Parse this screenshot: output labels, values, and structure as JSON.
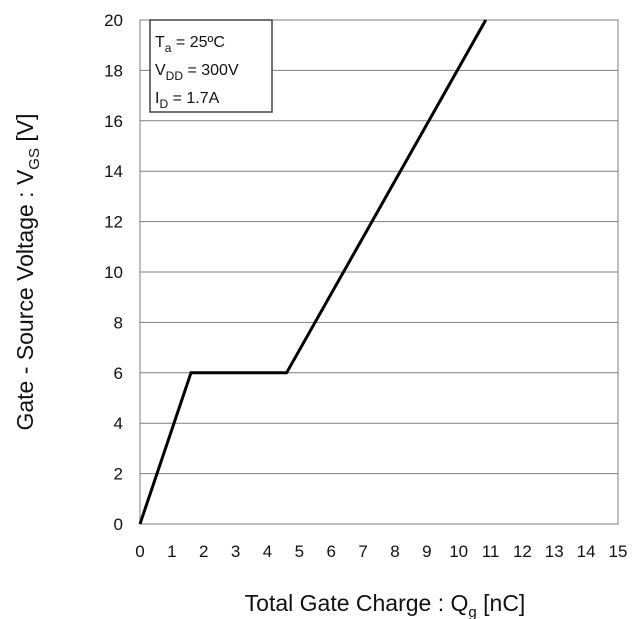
{
  "chart_data": {
    "type": "line",
    "xlabel": "Total Gate Charge : Qg [nC]",
    "xlabel_main": "Total Gate Charge : Q",
    "xlabel_sub": "g",
    "xlabel_unit": " [nC]",
    "ylabel": "Gate - Source Voltage : VGS [V]",
    "ylabel_main": "Gate - Source Voltage : V",
    "ylabel_sub": "GS",
    "ylabel_unit": " [V]",
    "xlim": [
      0,
      15
    ],
    "ylim": [
      0,
      20
    ],
    "x_ticks": [
      "0",
      "1",
      "2",
      "3",
      "4",
      "5",
      "6",
      "7",
      "8",
      "9",
      "10",
      "11",
      "12",
      "13",
      "14",
      "15"
    ],
    "y_ticks": [
      "0",
      "2",
      "4",
      "6",
      "8",
      "10",
      "12",
      "14",
      "16",
      "18",
      "20"
    ],
    "grid": "horizontal",
    "series": [
      {
        "x": [
          0,
          1.6,
          4.6,
          10.85
        ],
        "y": [
          0,
          6,
          6,
          20
        ],
        "color": "#000000"
      }
    ],
    "conditions": [
      {
        "main": "T",
        "sub": "a",
        "rest": " = 25ºC"
      },
      {
        "main": "V",
        "sub": "DD",
        "rest": " = 300V"
      },
      {
        "main": "I",
        "sub": "D",
        "rest": " = 1.7A"
      }
    ],
    "conditions_placement": "top-left",
    "colors": {
      "grid": "#7f7f7f",
      "line": "#000000",
      "frame": "#7f7f7f"
    }
  }
}
